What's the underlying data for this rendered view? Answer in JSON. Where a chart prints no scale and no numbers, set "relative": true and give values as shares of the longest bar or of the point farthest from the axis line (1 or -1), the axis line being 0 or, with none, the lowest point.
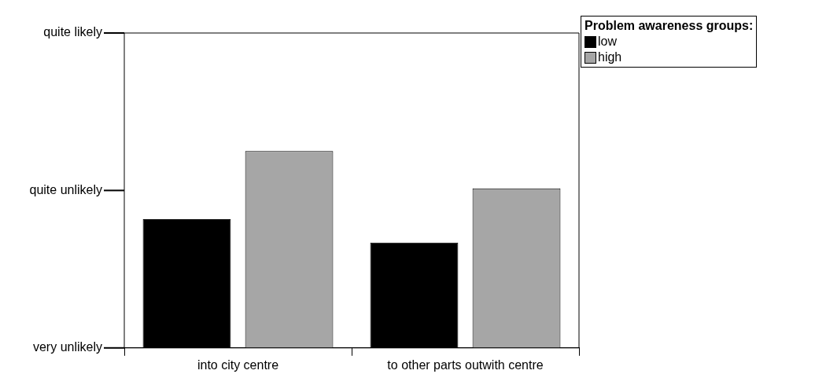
{
  "chart_data": {
    "type": "bar",
    "relative": true,
    "categories": [
      "into city centre",
      "to other parts outwith centre"
    ],
    "series": [
      {
        "name": "low",
        "color": "#000000",
        "values": [
          0.654,
          0.535
        ]
      },
      {
        "name": "high",
        "color": "#a6a6a6",
        "values": [
          1,
          0.811
        ]
      }
    ],
    "annotations": [
      "quite likely",
      "quite unlikely",
      "very unlikely"
    ],
    "legend_title": "Problem awareness groups:",
    "legend": "top right",
    "grid": false
  }
}
